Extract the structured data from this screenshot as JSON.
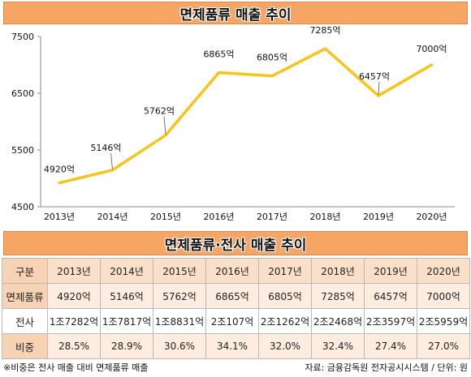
{
  "chart_data": {
    "type": "line",
    "title": "면제품류 매출 추이",
    "categories": [
      "2013년",
      "2014년",
      "2015년",
      "2016년",
      "2017년",
      "2018년",
      "2019년",
      "2020년"
    ],
    "series": [
      {
        "values": [
          4920,
          5146,
          5762,
          6865,
          6805,
          7285,
          6457,
          7000
        ],
        "labels": [
          "4920억",
          "5146억",
          "5762억",
          "6865억",
          "6805억",
          "7285억",
          "6457억",
          "7000억"
        ]
      }
    ],
    "y_ticks": [
      "4500",
      "5500",
      "6500",
      "7500"
    ],
    "ylim": [
      4500,
      7500
    ],
    "xlabel": "",
    "ylabel": "",
    "grid": false,
    "line_color": "#f8c419"
  },
  "table": {
    "title": "면제품류·전사 매출 추이",
    "header": [
      "구분",
      "2013년",
      "2014년",
      "2015년",
      "2016년",
      "2017년",
      "2018년",
      "2019년",
      "2020년"
    ],
    "rows": [
      [
        "면제품류",
        "4920억",
        "5146억",
        "5762억",
        "6865억",
        "6805억",
        "7285억",
        "6457억",
        "7000억"
      ],
      [
        "전사",
        "1조7282억",
        "1조7817억",
        "1조8831억",
        "2조107억",
        "2조1262억",
        "2조2468억",
        "2조3597억",
        "2조5959억"
      ],
      [
        "비중",
        "28.5%",
        "28.9%",
        "30.6%",
        "34.1%",
        "32.0%",
        "32.4%",
        "27.4%",
        "27.0%"
      ]
    ]
  },
  "footer": {
    "note": "※비중은 전사 매출 대비 면제품류 매출",
    "source": "자료: 금융감독원 전자공시시스템 / 단위: 원"
  },
  "colors": {
    "banner": "#f6a564",
    "line": "#f8c419",
    "table_head": "#fbe0c9",
    "table_alt": "#fdece0"
  }
}
